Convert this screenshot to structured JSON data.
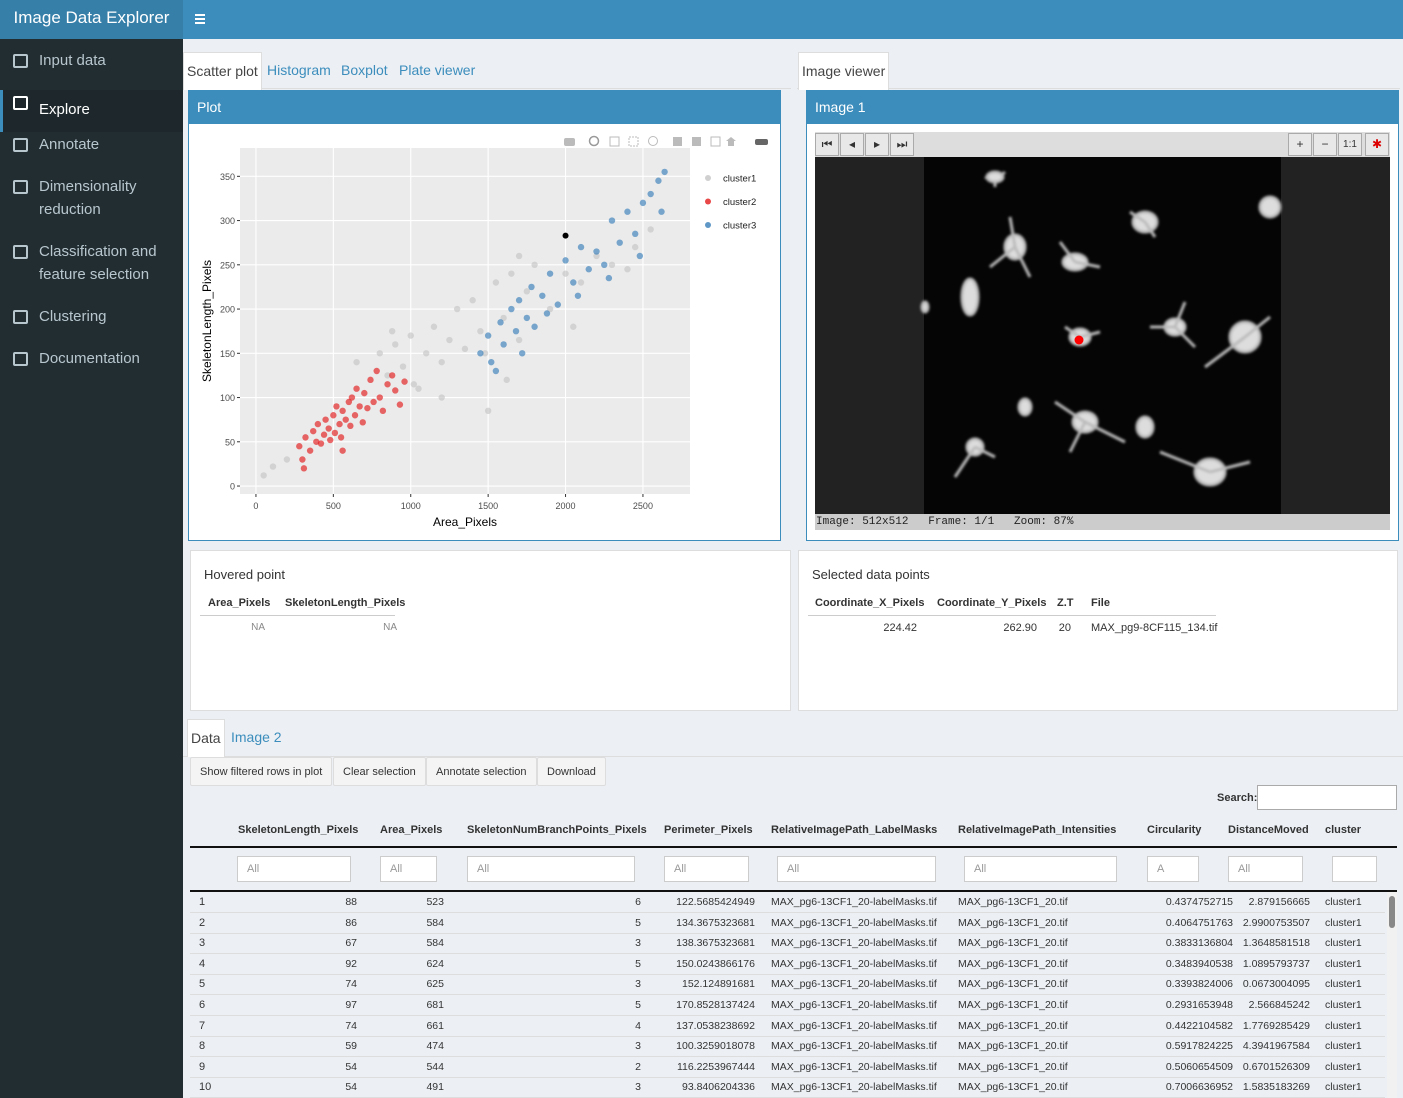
{
  "header": {
    "title": "Image Data Explorer"
  },
  "sidebar": {
    "items": [
      "Input data",
      "Explore",
      "Annotate",
      "Dimensionality reduction",
      "Classification and feature selection",
      "Clustering",
      "Documentation"
    ]
  },
  "plot_tabs": [
    "Scatter plot",
    "Histogram",
    "Boxplot",
    "Plate viewer"
  ],
  "plot_box": {
    "title": "Plot"
  },
  "chart_data": {
    "type": "scatter",
    "x_label": "Area_Pixels",
    "y_label": "SkeletonLength_Pixels",
    "xlim": [
      -103,
      2804
    ],
    "ylim": [
      -9,
      382
    ],
    "xticks": [
      0,
      500,
      1000,
      1500,
      2000,
      2500
    ],
    "yticks": [
      0,
      50,
      100,
      150,
      200,
      250,
      300,
      350
    ],
    "grid": true,
    "legend": "right",
    "series": [
      {
        "name": "cluster1",
        "color": "#c4c4c4",
        "x": [
          50,
          110,
          200,
          650,
          800,
          850,
          900,
          950,
          1000,
          1050,
          1100,
          1150,
          1200,
          1250,
          1300,
          1350,
          1400,
          1450,
          1500,
          1550,
          1600,
          1650,
          1700,
          1750,
          1800,
          1900,
          2000,
          2100,
          2200,
          2300,
          2400,
          2450,
          1480,
          1620,
          1200,
          1020,
          880,
          1700,
          2050,
          2550
        ],
        "values": [
          12,
          22,
          30,
          140,
          150,
          125,
          160,
          135,
          170,
          110,
          150,
          180,
          140,
          165,
          200,
          155,
          210,
          175,
          85,
          230,
          190,
          240,
          165,
          220,
          250,
          200,
          240,
          230,
          260,
          250,
          245,
          270,
          150,
          120,
          100,
          115,
          175,
          260,
          180,
          290
        ]
      },
      {
        "name": "cluster2",
        "color": "#e41a1c",
        "x": [
          280,
          300,
          320,
          350,
          370,
          390,
          400,
          420,
          440,
          450,
          470,
          480,
          500,
          510,
          520,
          540,
          550,
          560,
          580,
          600,
          610,
          620,
          640,
          650,
          670,
          690,
          700,
          720,
          740,
          760,
          780,
          800,
          820,
          850,
          880,
          900,
          930,
          960,
          310,
          560
        ],
        "values": [
          45,
          30,
          55,
          40,
          62,
          50,
          70,
          48,
          58,
          75,
          65,
          52,
          80,
          60,
          90,
          70,
          55,
          85,
          75,
          95,
          68,
          100,
          80,
          110,
          90,
          72,
          105,
          88,
          120,
          95,
          130,
          100,
          85,
          115,
          125,
          108,
          92,
          118,
          20,
          40
        ]
      },
      {
        "name": "cluster3",
        "color": "#377eb8",
        "x": [
          1450,
          1500,
          1520,
          1580,
          1600,
          1650,
          1680,
          1700,
          1750,
          1780,
          1800,
          1850,
          1900,
          1950,
          2000,
          2050,
          2100,
          2150,
          2200,
          2250,
          2300,
          2350,
          2400,
          2450,
          2500,
          2550,
          2600,
          2620,
          2640,
          1550,
          1720,
          1880,
          2080,
          2280,
          2480
        ],
        "values": [
          150,
          170,
          140,
          185,
          160,
          200,
          175,
          210,
          190,
          225,
          180,
          215,
          240,
          205,
          255,
          230,
          270,
          245,
          265,
          250,
          300,
          275,
          310,
          285,
          320,
          330,
          345,
          310,
          355,
          130,
          150,
          195,
          215,
          235,
          260
        ]
      }
    ],
    "selected_point": {
      "x": 2000,
      "y": 283,
      "color": "#000000"
    }
  },
  "image_tabs": [
    "Image viewer"
  ],
  "image_box": {
    "title": "Image 1",
    "zoom_buttons": [
      "+",
      "−",
      "1:1"
    ],
    "status": "Image: 512x512   Frame: 1/1   Zoom: 87%"
  },
  "hovered": {
    "title": "Hovered point",
    "columns": [
      "Area_Pixels",
      "SkeletonLength_Pixels"
    ],
    "row": [
      "NA",
      "NA"
    ]
  },
  "selected": {
    "title": "Selected data points",
    "columns": [
      "Coordinate_X_Pixels",
      "Coordinate_Y_Pixels",
      "Z.T",
      "File"
    ],
    "row": [
      "224.42",
      "262.90",
      "20",
      "MAX_pg9-8CF115_134.tif"
    ]
  },
  "data_tabs": [
    "Data",
    "Image 2"
  ],
  "buttons": [
    "Show filtered rows in plot",
    "Clear selection",
    "Annotate selection",
    "Download"
  ],
  "search_label": "Search:",
  "data_table": {
    "columns": [
      "SkeletonLength_Pixels",
      "Area_Pixels",
      "SkeletonNumBranchPoints_Pixels",
      "Perimeter_Pixels",
      "RelativeImagePath_LabelMasks",
      "RelativeImagePath_Intensities",
      "Circularity",
      "DistanceMoved",
      "cluster"
    ],
    "filters": [
      "All",
      "All",
      "All",
      "All",
      "All",
      "All",
      "A",
      "All"
    ],
    "rows": [
      [
        1,
        88,
        523,
        6,
        122.5685424949,
        "MAX_pg6-13CF1_20-labelMasks.tif",
        "MAX_pg6-13CF1_20.tif",
        0.4374752715,
        2.879156665,
        "cluster1"
      ],
      [
        2,
        86,
        584,
        5,
        134.3675323681,
        "MAX_pg6-13CF1_20-labelMasks.tif",
        "MAX_pg6-13CF1_20.tif",
        0.4064751763,
        2.9900753507,
        "cluster1"
      ],
      [
        3,
        67,
        584,
        3,
        138.3675323681,
        "MAX_pg6-13CF1_20-labelMasks.tif",
        "MAX_pg6-13CF1_20.tif",
        0.3833136804,
        1.3648581518,
        "cluster1"
      ],
      [
        4,
        92,
        624,
        5,
        150.0243866176,
        "MAX_pg6-13CF1_20-labelMasks.tif",
        "MAX_pg6-13CF1_20.tif",
        0.3483940538,
        1.0895793737,
        "cluster1"
      ],
      [
        5,
        74,
        625,
        3,
        152.124891681,
        "MAX_pg6-13CF1_20-labelMasks.tif",
        "MAX_pg6-13CF1_20.tif",
        0.3393824006,
        0.0673004095,
        "cluster1"
      ],
      [
        6,
        97,
        681,
        5,
        170.8528137424,
        "MAX_pg6-13CF1_20-labelMasks.tif",
        "MAX_pg6-13CF1_20.tif",
        0.2931653948,
        2.566845242,
        "cluster1"
      ],
      [
        7,
        74,
        661,
        4,
        137.0538238692,
        "MAX_pg6-13CF1_20-labelMasks.tif",
        "MAX_pg6-13CF1_20.tif",
        0.4422104582,
        1.7769285429,
        "cluster1"
      ],
      [
        8,
        59,
        474,
        3,
        100.3259018078,
        "MAX_pg6-13CF1_20-labelMasks.tif",
        "MAX_pg6-13CF1_20.tif",
        0.5917824225,
        4.3941967584,
        "cluster1"
      ],
      [
        9,
        54,
        544,
        2,
        116.2253967444,
        "MAX_pg6-13CF1_20-labelMasks.tif",
        "MAX_pg6-13CF1_20.tif",
        0.5060654509,
        0.6701526309,
        "cluster1"
      ],
      [
        10,
        54,
        491,
        3,
        93.8406204336,
        "MAX_pg6-13CF1_20-labelMasks.tif",
        "MAX_pg6-13CF1_20.tif",
        0.7006636952,
        1.5835183269,
        "cluster1"
      ]
    ]
  }
}
